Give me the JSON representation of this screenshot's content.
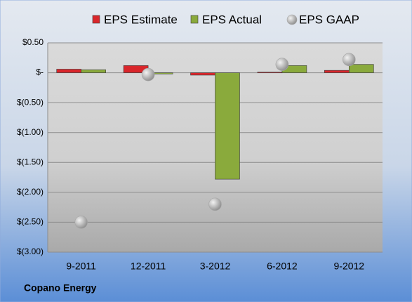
{
  "chart_data": {
    "type": "bar",
    "footer": "Copano Energy",
    "categories": [
      "9-2011",
      "12-2011",
      "3-2012",
      "6-2012",
      "9-2012"
    ],
    "series": [
      {
        "name": "EPS Estimate",
        "type": "bar",
        "color": "#d9262b",
        "values": [
          0.06,
          0.12,
          -0.04,
          0.01,
          0.04
        ]
      },
      {
        "name": "EPS Actual",
        "type": "bar",
        "color": "#8aaa3c",
        "values": [
          0.05,
          -0.02,
          -1.78,
          0.12,
          0.14
        ]
      },
      {
        "name": "EPS GAAP",
        "type": "scatter",
        "color": "#a6a6a6",
        "values": [
          -2.5,
          -0.03,
          -2.2,
          0.14,
          0.22
        ]
      }
    ],
    "ylim": [
      -3,
      0.5
    ],
    "yticks": [
      {
        "value": 0.5,
        "label": "$0.50"
      },
      {
        "value": 0,
        "label": "$-"
      },
      {
        "value": -0.5,
        "label": "$(0.50)"
      },
      {
        "value": -1,
        "label": "$(1.00)"
      },
      {
        "value": -1.5,
        "label": "$(1.50)"
      },
      {
        "value": -2,
        "label": "$(2.00)"
      },
      {
        "value": -2.5,
        "label": "$(2.50)"
      },
      {
        "value": -3,
        "label": "$(3.00)"
      }
    ],
    "grid": true,
    "legend": "top"
  }
}
